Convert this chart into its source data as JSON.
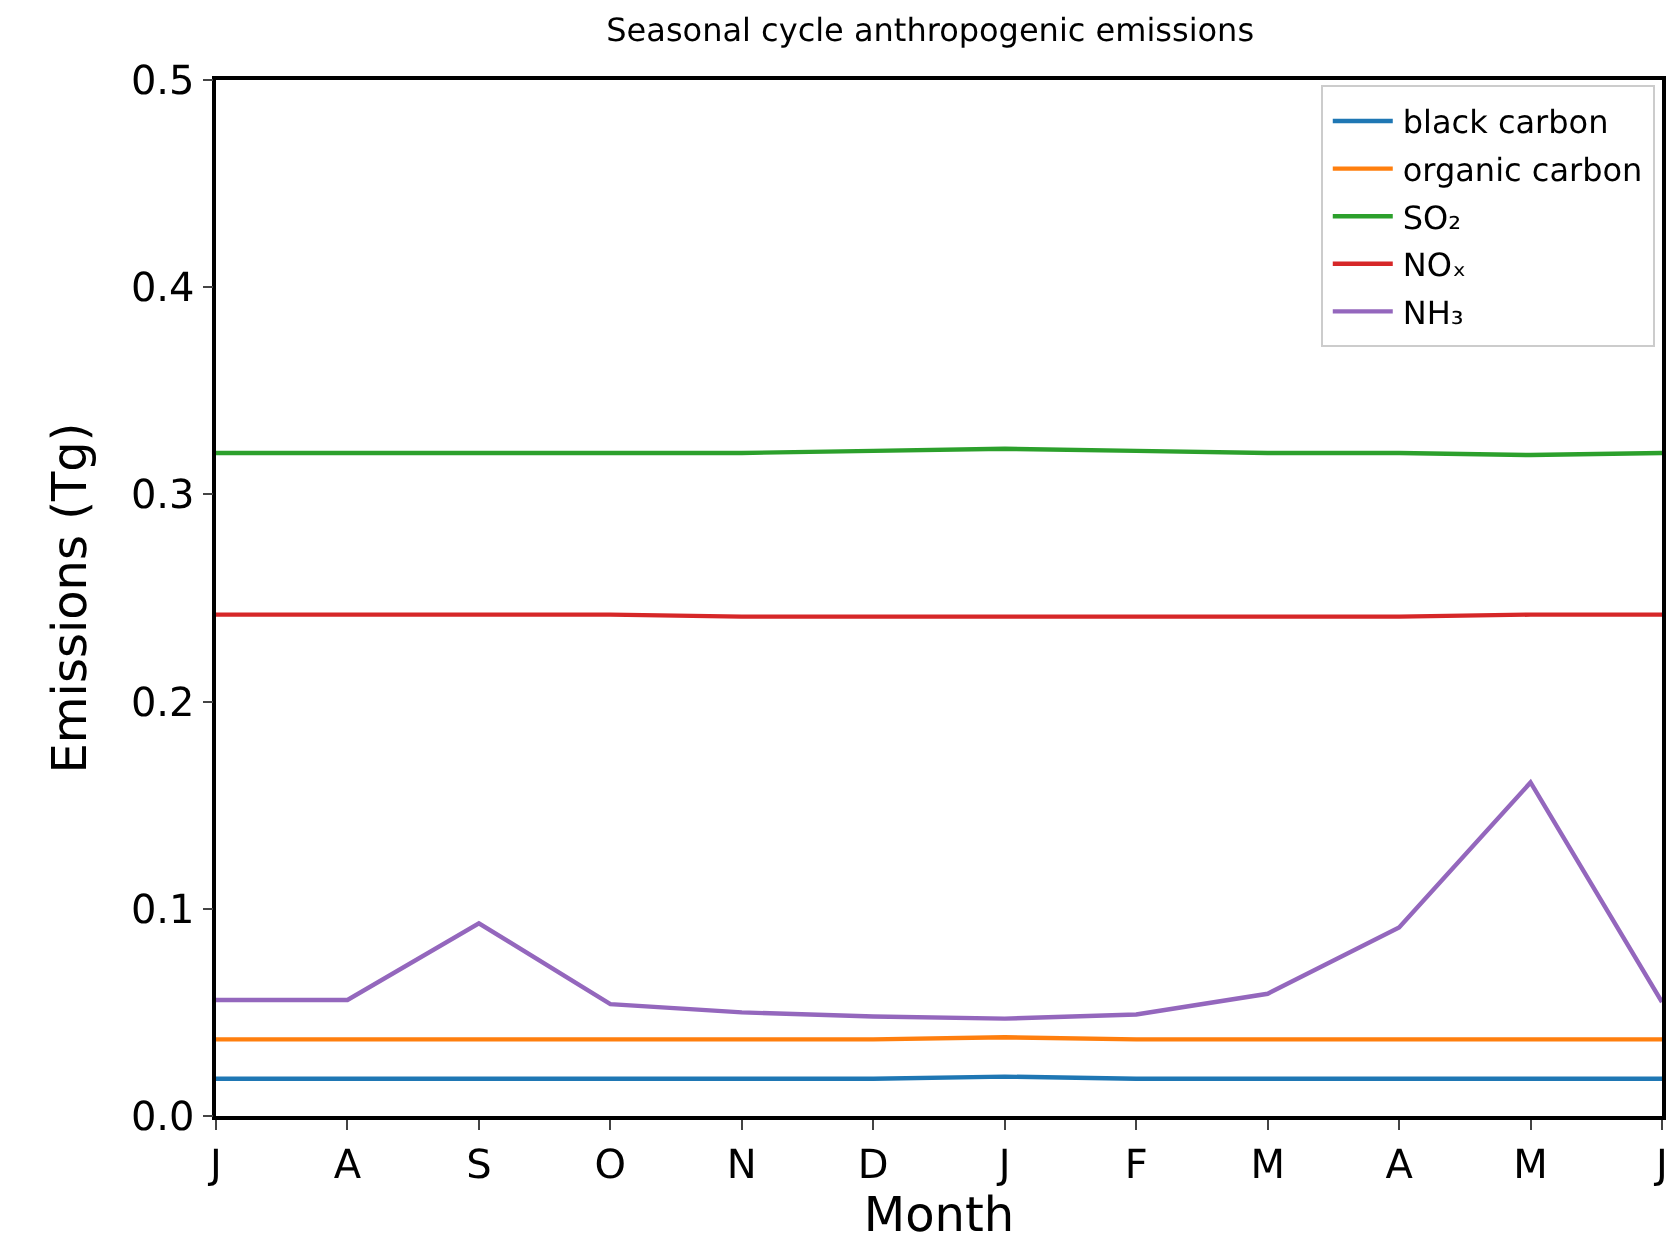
{
  "chart_data": {
    "type": "line",
    "title": "Seasonal cycle anthropogenic emissions",
    "xlabel": "Month",
    "ylabel": "Emissions (Tg)",
    "categories": [
      "J",
      "A",
      "S",
      "O",
      "N",
      "D",
      "J",
      "F",
      "M",
      "A",
      "M",
      "J"
    ],
    "ylim": [
      0,
      0.5
    ],
    "yticks": [
      {
        "value": 0,
        "label": "0.0"
      },
      0.1,
      0.2,
      0.3,
      0.4,
      0.5
    ],
    "legend": "top right",
    "marker": "none",
    "line_style": "solid",
    "series": [
      {
        "name": "black carbon",
        "color": "#1f77b4",
        "values": [
          0.018,
          0.018,
          0.018,
          0.018,
          0.018,
          0.018,
          0.019,
          0.018,
          0.018,
          0.018,
          0.018,
          0.018
        ]
      },
      {
        "name": "organic carbon",
        "color": "#ff7f0e",
        "values": [
          0.037,
          0.037,
          0.037,
          0.037,
          0.037,
          0.037,
          0.038,
          0.037,
          0.037,
          0.037,
          0.037,
          0.037
        ]
      },
      {
        "name": "SO₂",
        "color": "#2ca02c",
        "values": [
          0.32,
          0.32,
          0.32,
          0.32,
          0.32,
          0.321,
          0.322,
          0.321,
          0.32,
          0.32,
          0.319,
          0.32
        ]
      },
      {
        "name": "NOₓ",
        "color": "#d62728",
        "values": [
          0.242,
          0.242,
          0.242,
          0.242,
          0.241,
          0.241,
          0.241,
          0.241,
          0.241,
          0.241,
          0.242,
          0.242
        ]
      },
      {
        "name": "NH₃",
        "color": "#9467bd",
        "values": [
          0.056,
          0.056,
          0.093,
          0.054,
          0.05,
          0.048,
          0.047,
          0.049,
          0.059,
          0.091,
          0.161,
          0.055
        ]
      }
    ]
  }
}
